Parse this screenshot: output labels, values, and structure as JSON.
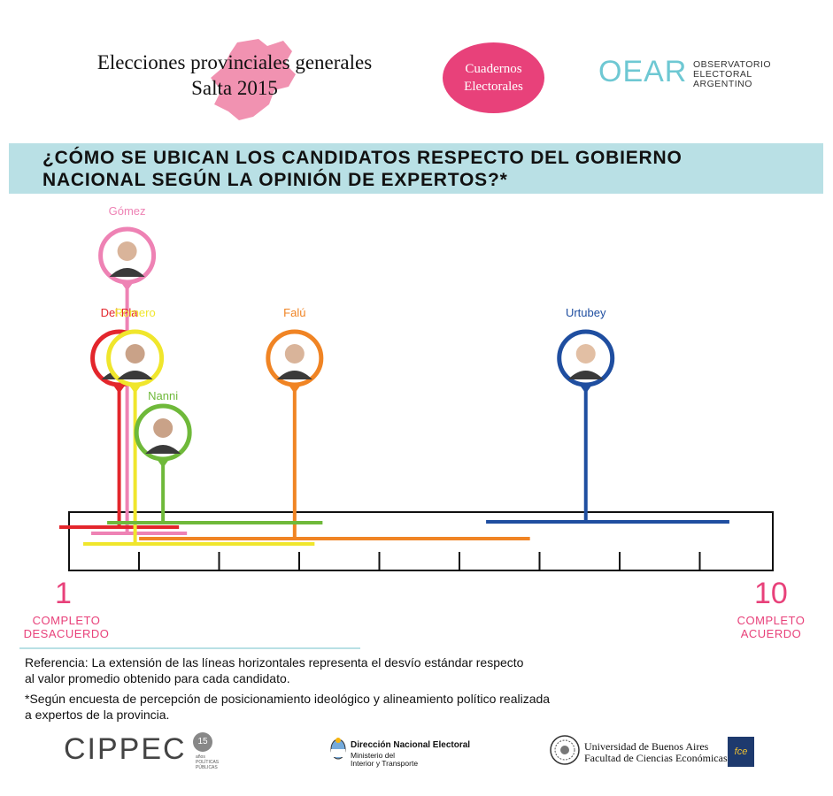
{
  "header": {
    "title_line1": "Elecciones provinciales generales",
    "title_line2": "Salta 2015",
    "badge_line1": "Cuadernos",
    "badge_line2": "Electorales",
    "oear_mark": "OEAR",
    "oear_line1": "OBSERVATORIO",
    "oear_line2": "ELECTORAL",
    "oear_line3": "ARGENTINO"
  },
  "question_line1": "¿CÓMO SE UBICAN LOS CANDIDATOS RESPECTO DEL GOBIERNO",
  "question_line2": "NACIONAL SEGÚN LA OPINIÓN DE EXPERTOS?*",
  "chart_data": {
    "type": "scatter",
    "xlim": [
      1,
      10
    ],
    "scale_min_label": "1",
    "scale_max_label": "10",
    "scale_min_text_1": "COMPLETO",
    "scale_min_text_2": "DESACUERDO",
    "scale_max_text_1": "COMPLETO",
    "scale_max_text_2": "ACUERDO",
    "candidates": [
      {
        "name": "Gómez",
        "mean": 1.85,
        "sd_low": 1.4,
        "sd_high": 2.6,
        "color": "#ee82b4",
        "level": 0
      },
      {
        "name": "Del Pla",
        "mean": 1.75,
        "sd_low": 1.0,
        "sd_high": 2.5,
        "color": "#e3262c",
        "level": 1
      },
      {
        "name": "Romero",
        "mean": 1.95,
        "sd_low": 1.3,
        "sd_high": 4.2,
        "color": "#f0e62c",
        "level": 1
      },
      {
        "name": "Falú",
        "mean": 3.95,
        "sd_low": 2.0,
        "sd_high": 6.9,
        "color": "#f08424",
        "level": 1
      },
      {
        "name": "Urtubey",
        "mean": 7.6,
        "sd_low": 6.35,
        "sd_high": 9.4,
        "color": "#1f4ea0",
        "level": 1
      },
      {
        "name": "Nanni",
        "mean": 2.3,
        "sd_low": 1.6,
        "sd_high": 4.3,
        "color": "#6fb93a",
        "level": 2
      }
    ]
  },
  "notes": {
    "ref_line1": "Referencia:  La extensión de las líneas horizontales representa el desvío estándar respecto",
    "ref_line2": "al valor promedio obtenido para cada candidato.",
    "survey_line1": "*Según encuesta de percepción de posicionamiento ideológico y alineamiento político realizada",
    "survey_line2": "a expertos de la provincia."
  },
  "footer": {
    "cippec": "CIPPEC",
    "cippec_badge": "15",
    "cippec_sub1": "años",
    "cippec_sub2": "POLÍTICAS",
    "cippec_sub3": "PÚBLICAS",
    "dne_title": "Dirección Nacional Electoral",
    "dne_sub1": "Ministerio del",
    "dne_sub2": "Interior y Transporte",
    "uba_line1": "Universidad de Buenos Aires",
    "uba_line2": "Facultad de Ciencias Económicas",
    "fce": "fce"
  }
}
